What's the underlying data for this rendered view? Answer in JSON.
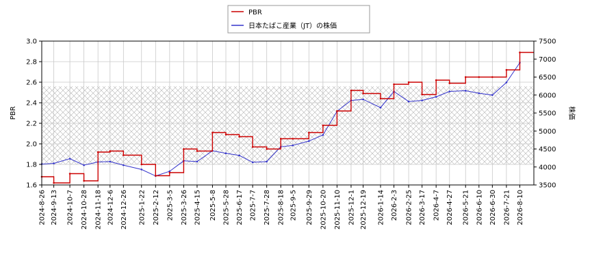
{
  "chart_data": {
    "type": "line",
    "legend": {
      "placement": "top-center",
      "entries": [
        {
          "label": "PBR",
          "color": "#cc0000"
        },
        {
          "label": "日本たばこ産業（JT）の株価",
          "color": "#3333cc"
        }
      ]
    },
    "xlabel": "",
    "ylabel_left": "PBR",
    "ylabel_right": "株価",
    "ylim_left": [
      1.6,
      3.0
    ],
    "ylim_right": [
      3500,
      7500
    ],
    "yticks_left": [
      "1.6",
      "1.8",
      "2.0",
      "2.2",
      "2.4",
      "2.6",
      "2.8",
      "3.0"
    ],
    "yticks_right": [
      "3500",
      "4000",
      "4500",
      "5000",
      "5500",
      "6000",
      "6500",
      "7000",
      "7500"
    ],
    "shaded_band_left": [
      1.8,
      2.56
    ],
    "grid": true,
    "x_ticks": [
      "2024-8-26",
      "2024-9-13",
      "2024-10-7",
      "2024-10-28",
      "2024-11-18",
      "2024-12-6",
      "2024-12-26",
      "2025-1-22",
      "2025-2-12",
      "2025-3-5",
      "2025-3-26",
      "2025-4-15",
      "2025-5-8",
      "2025-5-28",
      "2025-6-17",
      "2025-7-7",
      "2025-7-28",
      "2025-8-18",
      "2025-9-5",
      "2025-9-29",
      "2025-10-20",
      "2025-11-10",
      "2025-12-1",
      "2025-12-19",
      "2026-1-14",
      "2026-2-3",
      "2026-2-25",
      "2026-3-17",
      "2026-4-7",
      "2026-4-27",
      "2026-5-21",
      "2026-6-10",
      "2026-6-30",
      "2026-7-21",
      "2026-8-10"
    ],
    "series": [
      {
        "name": "PBR",
        "axis": "left",
        "color": "#cc0000",
        "x": [
          "2024-8-26",
          "2024-9-13",
          "2024-10-7",
          "2024-10-28",
          "2024-11-18",
          "2024-12-6",
          "2024-12-26",
          "2025-1-22",
          "2025-2-12",
          "2025-3-5",
          "2025-3-26",
          "2025-4-15",
          "2025-5-8",
          "2025-5-28",
          "2025-6-17",
          "2025-7-7",
          "2025-7-28",
          "2025-8-18",
          "2025-9-5",
          "2025-9-29",
          "2025-10-20",
          "2025-11-10",
          "2025-12-1",
          "2025-12-19",
          "2026-1-14",
          "2026-2-3",
          "2026-2-25",
          "2026-3-17",
          "2026-4-7",
          "2026-4-27",
          "2026-5-21",
          "2026-6-10",
          "2026-6-30",
          "2026-7-21",
          "2026-8-10"
        ],
        "values": [
          1.68,
          1.62,
          1.71,
          1.64,
          1.92,
          1.93,
          1.89,
          1.8,
          1.69,
          1.72,
          1.95,
          1.93,
          2.11,
          2.09,
          2.07,
          1.97,
          1.95,
          2.05,
          2.05,
          2.11,
          2.18,
          2.32,
          2.52,
          2.49,
          2.44,
          2.58,
          2.6,
          2.48,
          2.62,
          2.59,
          2.65,
          2.65,
          2.65,
          2.72,
          2.89
        ]
      },
      {
        "name": "日本たばこ産業（JT）の株価",
        "axis": "right",
        "color": "#3333cc",
        "x": [
          "2024-8-26",
          "2024-9-13",
          "2024-10-7",
          "2024-10-28",
          "2024-11-18",
          "2024-12-6",
          "2024-12-26",
          "2025-1-22",
          "2025-2-12",
          "2025-3-5",
          "2025-3-26",
          "2025-4-15",
          "2025-5-8",
          "2025-5-28",
          "2025-6-17",
          "2025-7-7",
          "2025-7-28",
          "2025-8-18",
          "2025-9-5",
          "2025-9-29",
          "2025-10-20",
          "2025-11-10",
          "2025-12-1",
          "2025-12-19",
          "2026-1-14",
          "2026-2-3",
          "2026-2-25",
          "2026-3-17",
          "2026-4-7",
          "2026-4-27",
          "2026-5-21",
          "2026-6-10",
          "2026-6-30",
          "2026-7-21",
          "2026-8-10"
        ],
        "values": [
          4080,
          4100,
          4230,
          4050,
          4140,
          4150,
          4050,
          3930,
          3750,
          3880,
          4170,
          4150,
          4450,
          4380,
          4320,
          4130,
          4150,
          4560,
          4600,
          4720,
          4890,
          5550,
          5850,
          5880,
          5650,
          6100,
          5820,
          5850,
          5950,
          6100,
          6120,
          6050,
          6000,
          6350,
          6900
        ]
      }
    ]
  }
}
